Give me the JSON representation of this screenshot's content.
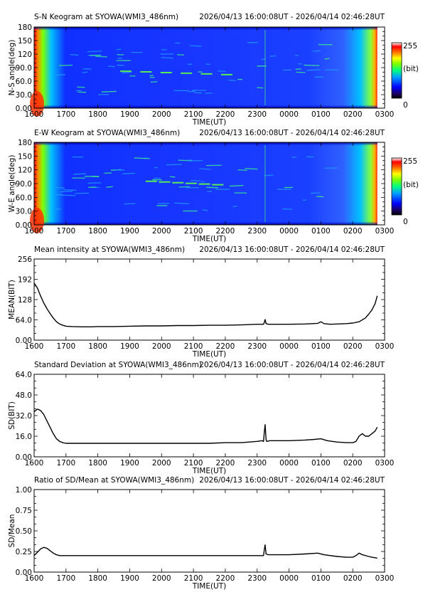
{
  "header": {
    "time_range": "2026/04/13 16:00:08UT - 2026/04/14 02:46:28UT"
  },
  "x_axis": {
    "label": "TIME(UT)",
    "ticks": [
      "1600",
      "1700",
      "1800",
      "1900",
      "2000",
      "2100",
      "2200",
      "2300",
      "0000",
      "0100",
      "0200",
      "0300"
    ]
  },
  "colorbar": {
    "max_label": "255",
    "unit_label": "(bit)",
    "min_label": "0"
  },
  "chart_data": [
    {
      "type": "heatmap",
      "title": "S-N Keogram at SYOWA(WMI3_486nm)",
      "ylabel": "N-S angle(deg)",
      "yticks": [
        "0.00",
        "30.0",
        "60.0",
        "90.0",
        "120",
        "150",
        "180"
      ],
      "ylim": [
        0,
        180
      ],
      "xlabel": "TIME(UT)",
      "xlim_hours": [
        0,
        11
      ],
      "data_extent_hours": [
        0,
        10.77
      ],
      "colorscale": [
        "#000080",
        "#0000ff",
        "#00a0ff",
        "#00ffa0",
        "#a0ff00",
        "#ffff00",
        "#ff8000",
        "#ff0000",
        "#ffffff"
      ],
      "features": [
        {
          "kind": "bright-edge-start",
          "x_hours": 0.0
        },
        {
          "kind": "bright-edge-end",
          "x_hours": 10.7
        },
        {
          "kind": "arc",
          "x_range": [
            2.7,
            6.5
          ],
          "y_deg": 82
        },
        {
          "kind": "spike",
          "x_hours": 7.25
        }
      ]
    },
    {
      "type": "heatmap",
      "title": "E-W Keogram at SYOWA(WMI3_486nm)",
      "ylabel": "W-E angle(deg)",
      "yticks": [
        "0.00",
        "30.0",
        "60.0",
        "90.0",
        "120",
        "150",
        "180"
      ],
      "ylim": [
        0,
        180
      ],
      "xlabel": "TIME(UT)",
      "xlim_hours": [
        0,
        11
      ],
      "data_extent_hours": [
        0,
        10.77
      ],
      "colorscale": [
        "#000080",
        "#0000ff",
        "#00a0ff",
        "#00ffa0",
        "#a0ff00",
        "#ffff00",
        "#ff8000",
        "#ff0000",
        "#ffffff"
      ],
      "features": [
        {
          "kind": "bright-edge-start",
          "x_hours": 0.0
        },
        {
          "kind": "bright-edge-end",
          "x_hours": 10.7
        },
        {
          "kind": "arc",
          "x_range": [
            3.5,
            6.0
          ],
          "y_deg": 95
        },
        {
          "kind": "spike",
          "x_hours": 7.25
        }
      ]
    },
    {
      "type": "line",
      "title": "Mean intensity at SYOWA(WMI3_486nm)",
      "ylabel": "MEAN(BIT)",
      "yticks": [
        "0.00",
        "64.0",
        "128",
        "192",
        "256"
      ],
      "ylim": [
        0,
        256
      ],
      "xlabel": "TIME(UT)",
      "xlim_hours": [
        0,
        11
      ],
      "series": [
        {
          "x": [
            0.0,
            0.1,
            0.2,
            0.3,
            0.4,
            0.5,
            0.6,
            0.7,
            0.8,
            0.9,
            1.0,
            1.2,
            1.5,
            1.8,
            2.0,
            2.5,
            3.0,
            3.5,
            4.0,
            4.5,
            5.0,
            5.5,
            6.0,
            6.5,
            7.0,
            7.2,
            7.22,
            7.25,
            7.28,
            7.35,
            7.5,
            8.0,
            8.5,
            8.9,
            9.0,
            9.1,
            9.3,
            9.5,
            9.8,
            10.0,
            10.2,
            10.4,
            10.5,
            10.6,
            10.7,
            10.77
          ],
          "y": [
            180,
            165,
            140,
            118,
            100,
            84,
            70,
            58,
            51,
            47,
            44,
            43,
            42,
            42,
            43,
            43,
            44,
            45,
            45,
            46,
            46,
            47,
            47,
            48,
            50,
            50,
            55,
            65,
            52,
            50,
            50,
            50,
            51,
            53,
            58,
            52,
            50,
            51,
            52,
            54,
            58,
            70,
            82,
            95,
            115,
            140
          ]
        }
      ]
    },
    {
      "type": "line",
      "title": "Standard Deviation at SYOWA(WMI3_486nm)",
      "ylabel": "SD(BIT)",
      "yticks": [
        "0.00",
        "16.0",
        "32.0",
        "48.0",
        "64.0"
      ],
      "ylim": [
        0,
        64
      ],
      "xlabel": "TIME(UT)",
      "xlim_hours": [
        0,
        11
      ],
      "series": [
        {
          "x": [
            0.0,
            0.1,
            0.2,
            0.3,
            0.4,
            0.5,
            0.6,
            0.7,
            0.8,
            0.9,
            1.0,
            1.2,
            1.5,
            2.0,
            2.5,
            3.0,
            3.5,
            4.0,
            4.5,
            5.0,
            5.5,
            6.0,
            6.5,
            7.0,
            7.15,
            7.2,
            7.22,
            7.25,
            7.28,
            7.3,
            7.4,
            7.6,
            8.0,
            8.5,
            8.8,
            9.0,
            9.2,
            9.5,
            9.8,
            10.0,
            10.1,
            10.2,
            10.3,
            10.4,
            10.5,
            10.6,
            10.7,
            10.77
          ],
          "y": [
            35,
            37,
            36,
            33,
            28,
            23,
            18,
            14,
            12,
            11,
            10.5,
            10.5,
            10.5,
            10.5,
            10.5,
            10.5,
            10.5,
            10.5,
            10.5,
            10.5,
            10.5,
            11,
            11,
            12,
            12.5,
            12,
            18,
            25,
            13,
            12,
            12.5,
            12.5,
            12.5,
            13,
            13.5,
            14,
            12.5,
            11.5,
            11,
            11,
            12,
            16,
            18,
            16,
            16,
            18,
            20,
            23
          ]
        }
      ]
    },
    {
      "type": "line",
      "title": "Ratio of SD/Mean at SYOWA(WMI3_486nm)",
      "ylabel": "SD/Mean",
      "yticks": [
        "0.00",
        "0.25",
        "0.50",
        "0.75",
        "1.00"
      ],
      "ylim": [
        0,
        1
      ],
      "xlabel": "TIME(UT)",
      "xlim_hours": [
        0,
        11
      ],
      "series": [
        {
          "x": [
            0.0,
            0.1,
            0.2,
            0.3,
            0.4,
            0.5,
            0.6,
            0.7,
            0.8,
            0.9,
            1.0,
            1.3,
            1.6,
            2.0,
            2.5,
            3.0,
            3.5,
            4.0,
            4.5,
            5.0,
            5.5,
            6.0,
            6.5,
            7.0,
            7.2,
            7.22,
            7.25,
            7.28,
            7.35,
            7.5,
            8.0,
            8.5,
            8.9,
            9.1,
            9.5,
            9.8,
            10.0,
            10.1,
            10.2,
            10.3,
            10.5,
            10.6,
            10.77
          ],
          "y": [
            0.2,
            0.24,
            0.28,
            0.3,
            0.29,
            0.26,
            0.23,
            0.21,
            0.2,
            0.2,
            0.2,
            0.2,
            0.2,
            0.2,
            0.2,
            0.2,
            0.2,
            0.2,
            0.2,
            0.2,
            0.2,
            0.2,
            0.2,
            0.2,
            0.2,
            0.26,
            0.33,
            0.22,
            0.21,
            0.21,
            0.21,
            0.22,
            0.23,
            0.21,
            0.19,
            0.18,
            0.18,
            0.2,
            0.23,
            0.21,
            0.19,
            0.18,
            0.17
          ]
        }
      ]
    }
  ]
}
